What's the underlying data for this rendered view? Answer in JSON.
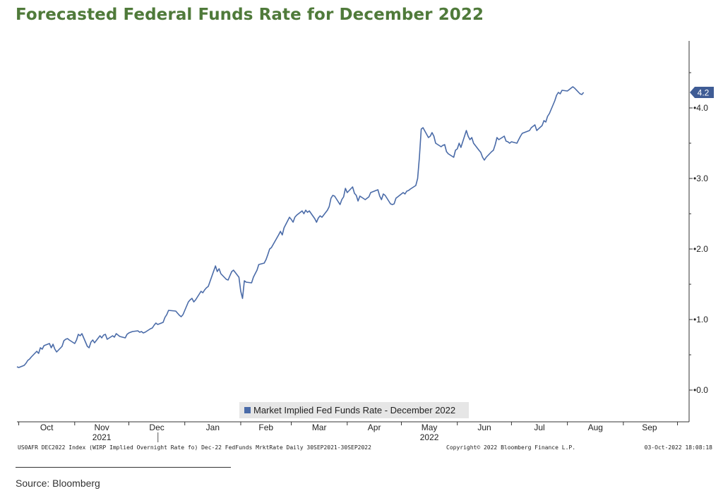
{
  "header": {
    "title": "Forecasted Federal Funds Rate for December 2022"
  },
  "footer": {
    "source": "Source: Bloomberg"
  },
  "terminal": {
    "left_text": "US0AFR DEC2022 Index (WIRP Implied Overnight Rate fo) Dec-22 FedFunds MrktRate  Daily 30SEP2021-30SEP2022",
    "copyright": "Copyright© 2022 Bloomberg Finance L.P.",
    "timestamp": "03-Oct-2022 18:08:18"
  },
  "colors": {
    "line": "#4a6ba8",
    "title": "#4f7a3a",
    "last_value_tag": "#3f5c95"
  },
  "chart_data": {
    "type": "line",
    "title": "",
    "xlabel": "",
    "ylabel": "",
    "ylim": [
      -0.3,
      4.95
    ],
    "yticks": [
      "0.0",
      "1.0",
      "2.0",
      "3.0",
      "4.0"
    ],
    "y_axis_position": "right",
    "grid": false,
    "legend_position": "bottom-center",
    "last_value_label": "4.2",
    "x_month_labels": [
      "Oct",
      "Nov",
      "Dec",
      "Jan",
      "Feb",
      "Mar",
      "Apr",
      "May",
      "Jun",
      "Jul",
      "Aug",
      "Sep"
    ],
    "x_year_labels": [
      "2021",
      "2022"
    ],
    "x_range": [
      "2021-09-30",
      "2022-09-30"
    ],
    "series": [
      {
        "name": "Market Implied Fed Funds Rate - December 2022",
        "points": [
          [
            "2021-09-30",
            0.33
          ],
          [
            "2021-10-01",
            0.32
          ],
          [
            "2021-10-04",
            0.35
          ],
          [
            "2021-10-05",
            0.38
          ],
          [
            "2021-10-06",
            0.42
          ],
          [
            "2021-10-07",
            0.44
          ],
          [
            "2021-10-08",
            0.47
          ],
          [
            "2021-10-11",
            0.55
          ],
          [
            "2021-10-12",
            0.52
          ],
          [
            "2021-10-13",
            0.6
          ],
          [
            "2021-10-14",
            0.58
          ],
          [
            "2021-10-15",
            0.63
          ],
          [
            "2021-10-18",
            0.66
          ],
          [
            "2021-10-19",
            0.6
          ],
          [
            "2021-10-20",
            0.65
          ],
          [
            "2021-10-21",
            0.58
          ],
          [
            "2021-10-22",
            0.54
          ],
          [
            "2021-10-25",
            0.62
          ],
          [
            "2021-10-26",
            0.7
          ],
          [
            "2021-10-27",
            0.72
          ],
          [
            "2021-10-28",
            0.73
          ],
          [
            "2021-10-29",
            0.71
          ],
          [
            "2021-11-01",
            0.66
          ],
          [
            "2021-11-02",
            0.71
          ],
          [
            "2021-11-03",
            0.79
          ],
          [
            "2021-11-04",
            0.77
          ],
          [
            "2021-11-05",
            0.8
          ],
          [
            "2021-11-08",
            0.62
          ],
          [
            "2021-11-09",
            0.6
          ],
          [
            "2021-11-10",
            0.68
          ],
          [
            "2021-11-11",
            0.71
          ],
          [
            "2021-11-12",
            0.67
          ],
          [
            "2021-11-15",
            0.77
          ],
          [
            "2021-11-16",
            0.74
          ],
          [
            "2021-11-17",
            0.78
          ],
          [
            "2021-11-18",
            0.79
          ],
          [
            "2021-11-19",
            0.72
          ],
          [
            "2021-11-22",
            0.77
          ],
          [
            "2021-11-23",
            0.75
          ],
          [
            "2021-11-24",
            0.8
          ],
          [
            "2021-11-26",
            0.76
          ],
          [
            "2021-11-29",
            0.74
          ],
          [
            "2021-11-30",
            0.79
          ],
          [
            "2021-12-01",
            0.81
          ],
          [
            "2021-12-02",
            0.82
          ],
          [
            "2021-12-03",
            0.83
          ],
          [
            "2021-12-06",
            0.84
          ],
          [
            "2021-12-07",
            0.82
          ],
          [
            "2021-12-08",
            0.83
          ],
          [
            "2021-12-09",
            0.81
          ],
          [
            "2021-12-10",
            0.82
          ],
          [
            "2021-12-13",
            0.87
          ],
          [
            "2021-12-14",
            0.88
          ],
          [
            "2021-12-15",
            0.92
          ],
          [
            "2021-12-16",
            0.95
          ],
          [
            "2021-12-17",
            0.93
          ],
          [
            "2021-12-20",
            0.96
          ],
          [
            "2021-12-21",
            1.03
          ],
          [
            "2021-12-22",
            1.07
          ],
          [
            "2021-12-23",
            1.13
          ],
          [
            "2021-12-27",
            1.12
          ],
          [
            "2021-12-28",
            1.09
          ],
          [
            "2021-12-29",
            1.06
          ],
          [
            "2021-12-30",
            1.04
          ],
          [
            "2021-12-31",
            1.07
          ],
          [
            "2022-01-03",
            1.25
          ],
          [
            "2022-01-04",
            1.28
          ],
          [
            "2022-01-05",
            1.3
          ],
          [
            "2022-01-06",
            1.25
          ],
          [
            "2022-01-07",
            1.28
          ],
          [
            "2022-01-10",
            1.4
          ],
          [
            "2022-01-11",
            1.38
          ],
          [
            "2022-01-12",
            1.42
          ],
          [
            "2022-01-13",
            1.45
          ],
          [
            "2022-01-14",
            1.47
          ],
          [
            "2022-01-18",
            1.76
          ],
          [
            "2022-01-19",
            1.68
          ],
          [
            "2022-01-20",
            1.72
          ],
          [
            "2022-01-21",
            1.65
          ],
          [
            "2022-01-24",
            1.57
          ],
          [
            "2022-01-25",
            1.56
          ],
          [
            "2022-01-26",
            1.62
          ],
          [
            "2022-01-27",
            1.68
          ],
          [
            "2022-01-28",
            1.7
          ],
          [
            "2022-01-31",
            1.6
          ],
          [
            "2022-02-01",
            1.4
          ],
          [
            "2022-02-02",
            1.3
          ],
          [
            "2022-02-03",
            1.55
          ],
          [
            "2022-02-04",
            1.53
          ],
          [
            "2022-02-07",
            1.52
          ],
          [
            "2022-02-08",
            1.6
          ],
          [
            "2022-02-09",
            1.65
          ],
          [
            "2022-02-10",
            1.7
          ],
          [
            "2022-02-11",
            1.78
          ],
          [
            "2022-02-14",
            1.8
          ],
          [
            "2022-02-15",
            1.85
          ],
          [
            "2022-02-16",
            1.92
          ],
          [
            "2022-02-17",
            2.0
          ],
          [
            "2022-02-18",
            2.02
          ],
          [
            "2022-02-22",
            2.2
          ],
          [
            "2022-02-23",
            2.25
          ],
          [
            "2022-02-24",
            2.2
          ],
          [
            "2022-02-25",
            2.3
          ],
          [
            "2022-02-28",
            2.45
          ],
          [
            "2022-03-01",
            2.42
          ],
          [
            "2022-03-02",
            2.38
          ],
          [
            "2022-03-03",
            2.45
          ],
          [
            "2022-03-04",
            2.48
          ],
          [
            "2022-03-07",
            2.54
          ],
          [
            "2022-03-08",
            2.5
          ],
          [
            "2022-03-09",
            2.55
          ],
          [
            "2022-03-10",
            2.52
          ],
          [
            "2022-03-11",
            2.54
          ],
          [
            "2022-03-14",
            2.43
          ],
          [
            "2022-03-15",
            2.38
          ],
          [
            "2022-03-16",
            2.44
          ],
          [
            "2022-03-17",
            2.47
          ],
          [
            "2022-03-18",
            2.45
          ],
          [
            "2022-03-21",
            2.55
          ],
          [
            "2022-03-22",
            2.6
          ],
          [
            "2022-03-23",
            2.72
          ],
          [
            "2022-03-24",
            2.76
          ],
          [
            "2022-03-25",
            2.75
          ],
          [
            "2022-03-28",
            2.63
          ],
          [
            "2022-03-29",
            2.7
          ],
          [
            "2022-03-30",
            2.74
          ],
          [
            "2022-03-31",
            2.86
          ],
          [
            "2022-04-01",
            2.8
          ],
          [
            "2022-04-04",
            2.88
          ],
          [
            "2022-04-05",
            2.79
          ],
          [
            "2022-04-06",
            2.76
          ],
          [
            "2022-04-07",
            2.68
          ],
          [
            "2022-04-08",
            2.75
          ],
          [
            "2022-04-11",
            2.7
          ],
          [
            "2022-04-12",
            2.72
          ],
          [
            "2022-04-13",
            2.74
          ],
          [
            "2022-04-14",
            2.8
          ],
          [
            "2022-04-18",
            2.84
          ],
          [
            "2022-04-19",
            2.75
          ],
          [
            "2022-04-20",
            2.7
          ],
          [
            "2022-04-21",
            2.78
          ],
          [
            "2022-04-22",
            2.76
          ],
          [
            "2022-04-25",
            2.64
          ],
          [
            "2022-04-26",
            2.63
          ],
          [
            "2022-04-27",
            2.64
          ],
          [
            "2022-04-28",
            2.72
          ],
          [
            "2022-04-29",
            2.74
          ],
          [
            "2022-05-02",
            2.8
          ],
          [
            "2022-05-03",
            2.78
          ],
          [
            "2022-05-04",
            2.82
          ],
          [
            "2022-05-05",
            2.83
          ],
          [
            "2022-05-06",
            2.85
          ],
          [
            "2022-05-09",
            2.9
          ],
          [
            "2022-05-10",
            3.0
          ],
          [
            "2022-05-11",
            3.3
          ],
          [
            "2022-05-12",
            3.7
          ],
          [
            "2022-05-13",
            3.72
          ],
          [
            "2022-05-16",
            3.58
          ],
          [
            "2022-05-17",
            3.6
          ],
          [
            "2022-05-18",
            3.65
          ],
          [
            "2022-05-19",
            3.6
          ],
          [
            "2022-05-20",
            3.5
          ],
          [
            "2022-05-23",
            3.45
          ],
          [
            "2022-05-24",
            3.47
          ],
          [
            "2022-05-25",
            3.48
          ],
          [
            "2022-05-26",
            3.38
          ],
          [
            "2022-05-27",
            3.35
          ],
          [
            "2022-05-30",
            3.3
          ],
          [
            "2022-05-31",
            3.4
          ],
          [
            "2022-06-01",
            3.42
          ],
          [
            "2022-06-02",
            3.5
          ],
          [
            "2022-06-03",
            3.44
          ],
          [
            "2022-06-06",
            3.68
          ],
          [
            "2022-06-07",
            3.6
          ],
          [
            "2022-06-08",
            3.55
          ],
          [
            "2022-06-09",
            3.58
          ],
          [
            "2022-06-10",
            3.5
          ],
          [
            "2022-06-13",
            3.4
          ],
          [
            "2022-06-14",
            3.37
          ],
          [
            "2022-06-15",
            3.3
          ],
          [
            "2022-06-16",
            3.26
          ],
          [
            "2022-06-17",
            3.3
          ],
          [
            "2022-06-20",
            3.38
          ],
          [
            "2022-06-21",
            3.4
          ],
          [
            "2022-06-22",
            3.48
          ],
          [
            "2022-06-23",
            3.58
          ],
          [
            "2022-06-24",
            3.55
          ],
          [
            "2022-06-27",
            3.6
          ],
          [
            "2022-06-28",
            3.53
          ],
          [
            "2022-06-29",
            3.52
          ],
          [
            "2022-06-30",
            3.5
          ],
          [
            "2022-07-01",
            3.52
          ],
          [
            "2022-07-04",
            3.5
          ],
          [
            "2022-07-05",
            3.55
          ],
          [
            "2022-07-06",
            3.6
          ],
          [
            "2022-07-07",
            3.64
          ],
          [
            "2022-07-08",
            3.65
          ],
          [
            "2022-07-11",
            3.68
          ],
          [
            "2022-07-12",
            3.72
          ],
          [
            "2022-07-13",
            3.74
          ],
          [
            "2022-07-14",
            3.76
          ],
          [
            "2022-07-15",
            3.68
          ],
          [
            "2022-07-18",
            3.75
          ],
          [
            "2022-07-19",
            3.82
          ],
          [
            "2022-07-20",
            3.8
          ],
          [
            "2022-07-21",
            3.88
          ],
          [
            "2022-07-22",
            3.92
          ],
          [
            "2022-07-25",
            4.1
          ],
          [
            "2022-07-26",
            4.18
          ],
          [
            "2022-07-27",
            4.22
          ],
          [
            "2022-07-28",
            4.2
          ],
          [
            "2022-07-29",
            4.25
          ],
          [
            "2022-08-01",
            4.24
          ],
          [
            "2022-08-02",
            4.26
          ],
          [
            "2022-08-03",
            4.28
          ],
          [
            "2022-08-04",
            4.3
          ],
          [
            "2022-08-05",
            4.28
          ],
          [
            "2022-08-08",
            4.2
          ],
          [
            "2022-08-09",
            4.19
          ],
          [
            "2022-08-10",
            4.22
          ]
        ]
      }
    ]
  }
}
